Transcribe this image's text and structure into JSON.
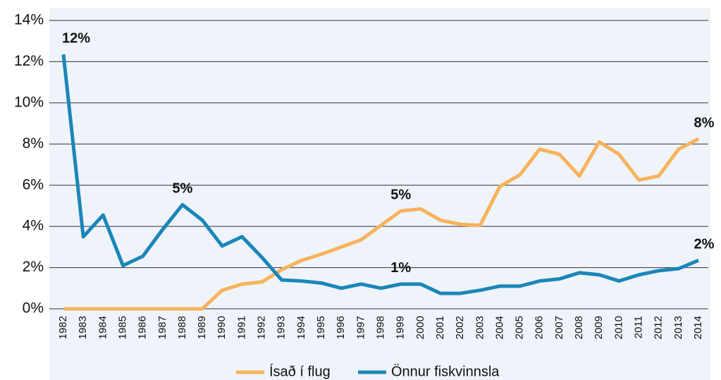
{
  "chart_data": {
    "type": "line",
    "categories": [
      "1982",
      "1983",
      "1984",
      "1985",
      "1986",
      "1987",
      "1988",
      "1989",
      "1990",
      "1991",
      "1992",
      "1993",
      "1994",
      "1995",
      "1996",
      "1997",
      "1998",
      "1999",
      "2000",
      "2001",
      "2002",
      "2003",
      "2004",
      "2005",
      "2006",
      "2007",
      "2008",
      "2009",
      "2010",
      "2011",
      "2012",
      "2013",
      "2014"
    ],
    "series": [
      {
        "name": "Ísað í flug",
        "color": "#f7b35c",
        "values": [
          0,
          0,
          0,
          0,
          0,
          0,
          0,
          0,
          0.9,
          1.2,
          1.3,
          1.9,
          2.35,
          2.65,
          3.0,
          3.35,
          4.05,
          4.75,
          4.85,
          4.3,
          4.1,
          4.05,
          5.95,
          6.5,
          7.75,
          7.5,
          6.45,
          8.1,
          7.5,
          6.25,
          6.45,
          7.75,
          8.25
        ],
        "value_labels": [
          null,
          null,
          null,
          null,
          null,
          null,
          null,
          null,
          null,
          null,
          null,
          null,
          null,
          null,
          null,
          null,
          null,
          "5%",
          null,
          null,
          null,
          null,
          null,
          null,
          null,
          null,
          null,
          null,
          null,
          null,
          null,
          null,
          "8%"
        ]
      },
      {
        "name": "Önnur fiskvinnsla",
        "color": "#1b86b8",
        "values": [
          12.35,
          3.5,
          4.55,
          2.1,
          2.55,
          3.85,
          5.05,
          4.3,
          3.05,
          3.5,
          2.5,
          1.4,
          1.35,
          1.25,
          1.0,
          1.2,
          1.0,
          1.2,
          1.2,
          0.75,
          0.75,
          0.9,
          1.1,
          1.1,
          1.35,
          1.45,
          1.75,
          1.65,
          1.35,
          1.65,
          1.85,
          1.95,
          2.35
        ],
        "value_labels": [
          "12%",
          null,
          null,
          null,
          null,
          null,
          "5%",
          null,
          null,
          null,
          null,
          null,
          null,
          null,
          null,
          null,
          null,
          "1%",
          null,
          null,
          null,
          null,
          null,
          null,
          null,
          null,
          null,
          null,
          null,
          null,
          null,
          null,
          "2%"
        ]
      }
    ],
    "ylim": [
      0,
      14
    ],
    "yticks": [
      {
        "value": 0,
        "label": "0%"
      },
      {
        "value": 2,
        "label": "2%"
      },
      {
        "value": 4,
        "label": "4%"
      },
      {
        "value": 6,
        "label": "6%"
      },
      {
        "value": 8,
        "label": "8%"
      },
      {
        "value": 10,
        "label": "10%"
      },
      {
        "value": 12,
        "label": "12%"
      },
      {
        "value": 14,
        "label": "14%"
      }
    ],
    "grid": true
  }
}
